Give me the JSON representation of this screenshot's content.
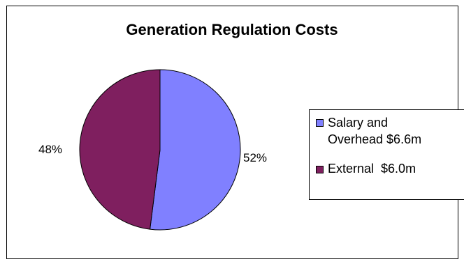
{
  "chart_data": {
    "type": "pie",
    "title": "Generation Regulation Costs",
    "slices": [
      {
        "label": "Salary and Overhead $6.6m",
        "line1": "Salary and",
        "line2": "Overhead $6.6m",
        "value": 52,
        "pct_label": "52%",
        "color": "#8080ff"
      },
      {
        "label": "External  $6.0m",
        "value": 48,
        "pct_label": "48%",
        "color": "#7f1f5f"
      }
    ],
    "legend_placement": "right"
  }
}
